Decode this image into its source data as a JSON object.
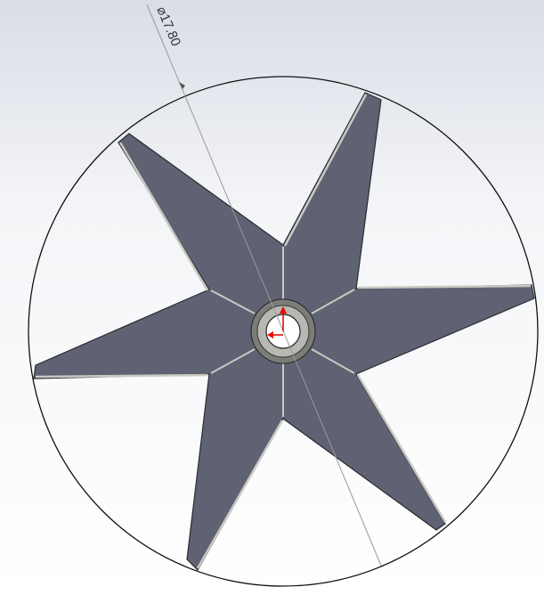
{
  "dimension": {
    "label": "⌀17.80"
  }
}
